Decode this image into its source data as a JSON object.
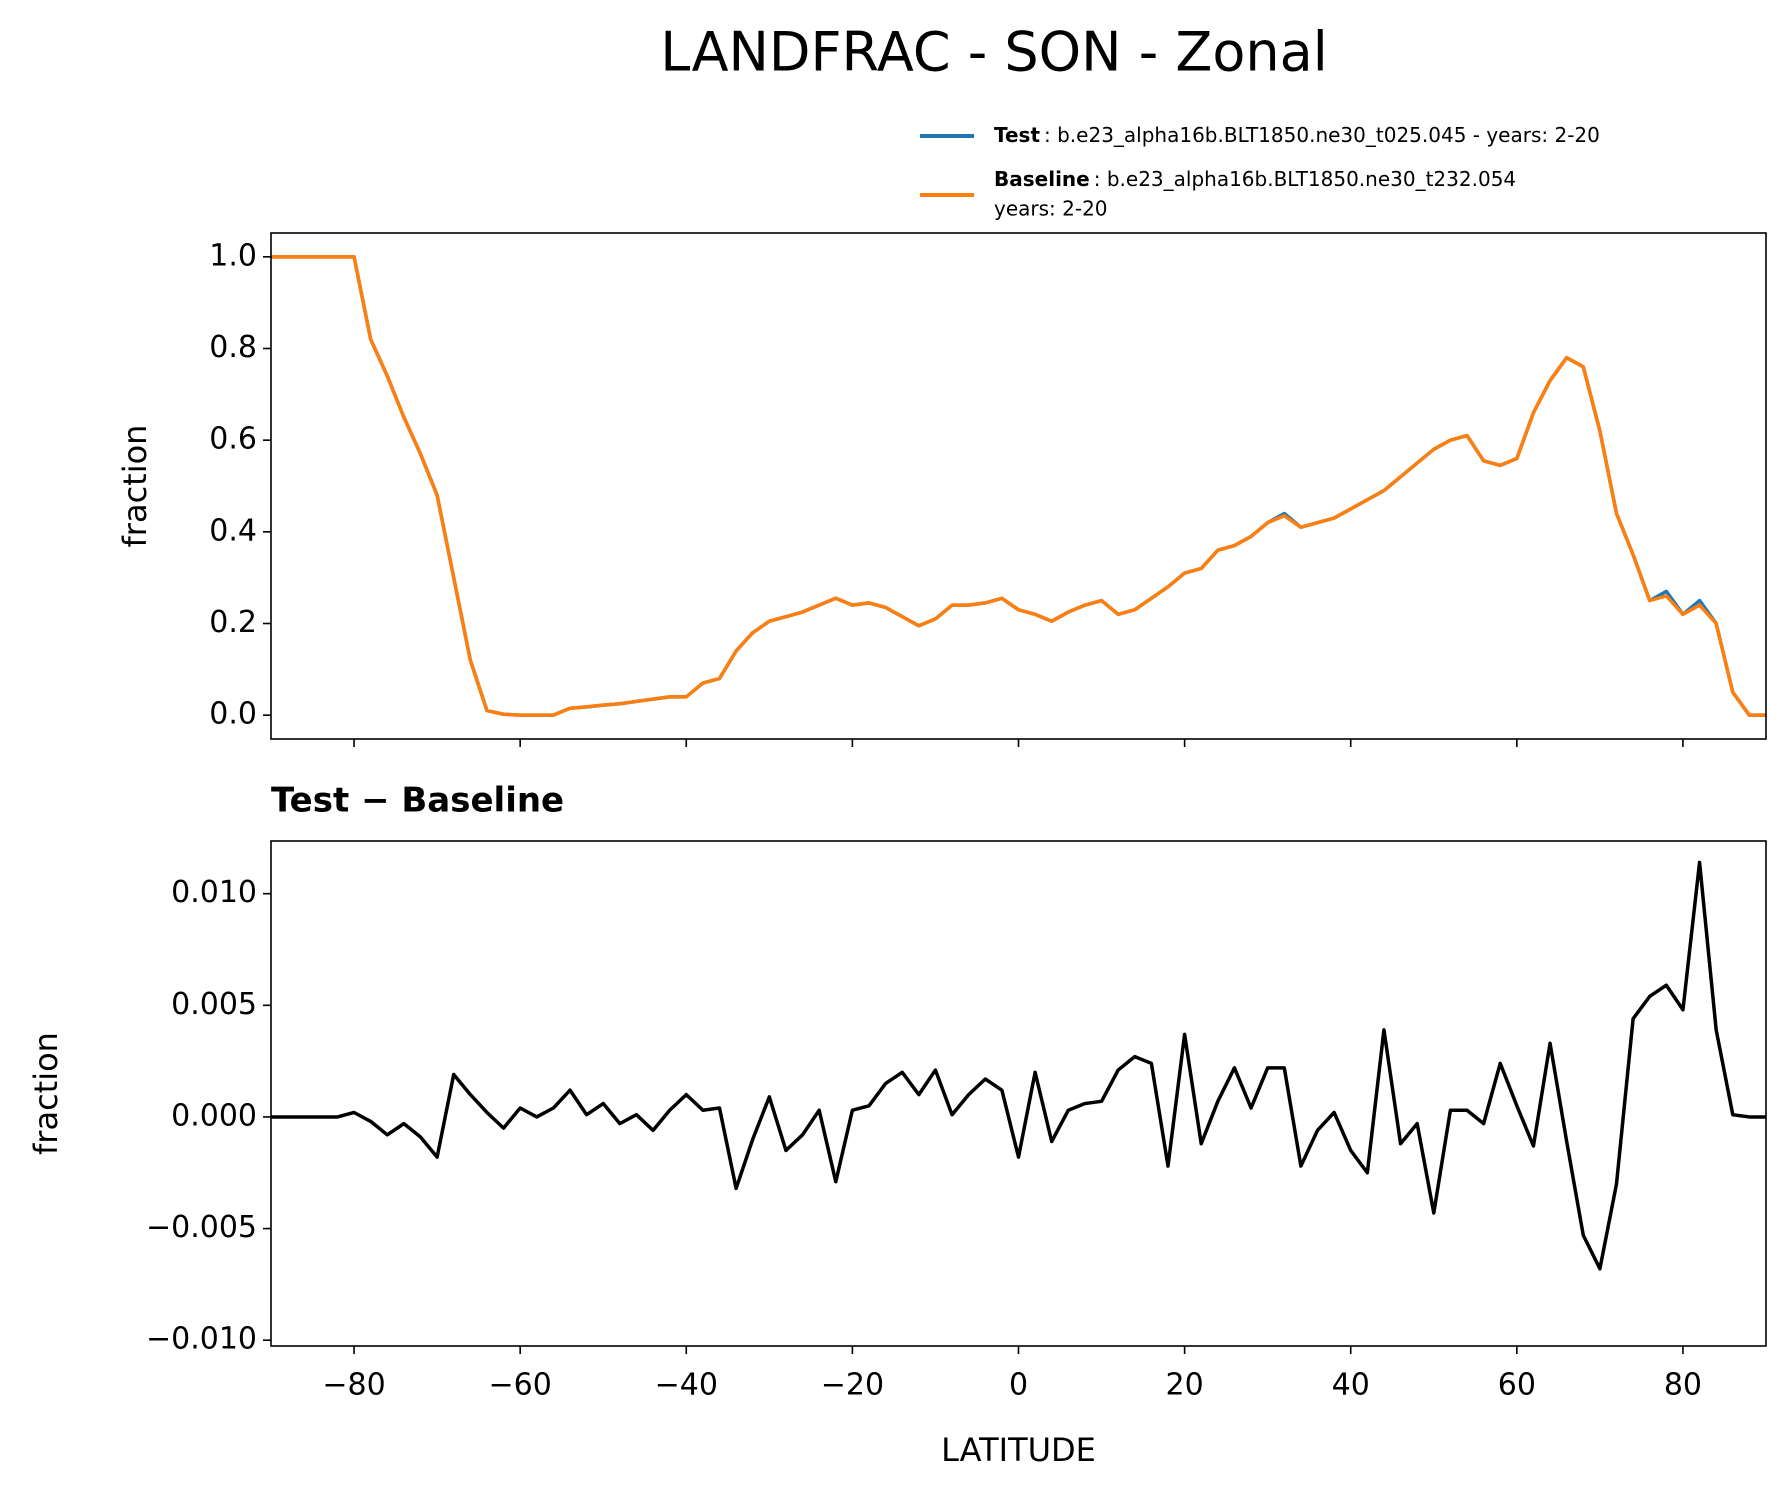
{
  "chart_data": [
    {
      "type": "line",
      "title": "LANDFRAC - SON - Zonal",
      "ylabel": "fraction",
      "x": [
        -90,
        -88,
        -86,
        -84,
        -82,
        -80,
        -78,
        -76,
        -74,
        -72,
        -70,
        -68,
        -66,
        -64,
        -62,
        -60,
        -58,
        -56,
        -54,
        -52,
        -50,
        -48,
        -46,
        -44,
        -42,
        -40,
        -38,
        -36,
        -34,
        -32,
        -30,
        -28,
        -26,
        -24,
        -22,
        -20,
        -18,
        -16,
        -14,
        -12,
        -10,
        -8,
        -6,
        -4,
        -2,
        0,
        2,
        4,
        6,
        8,
        10,
        12,
        14,
        16,
        18,
        20,
        22,
        24,
        26,
        28,
        30,
        32,
        34,
        36,
        38,
        40,
        42,
        44,
        46,
        48,
        50,
        52,
        54,
        56,
        58,
        60,
        62,
        64,
        66,
        68,
        70,
        72,
        74,
        76,
        78,
        80,
        82,
        84,
        86,
        88,
        90
      ],
      "series": [
        {
          "name": "Test",
          "case": ": b.e23_alpha16b.BLT1850.ne30_t025.045 - years: 2-20",
          "color": "#1f77b4",
          "values": [
            1,
            1,
            1,
            1,
            1,
            1,
            0.82,
            0.74,
            0.65,
            0.57,
            0.48,
            0.3,
            0.12,
            0.01,
            0.002,
            0,
            0,
            0,
            0.015,
            0.018,
            0.022,
            0.025,
            0.03,
            0.035,
            0.04,
            0.04,
            0.07,
            0.08,
            0.14,
            0.18,
            0.205,
            0.215,
            0.225,
            0.24,
            0.255,
            0.24,
            0.245,
            0.235,
            0.215,
            0.195,
            0.21,
            0.24,
            0.24,
            0.245,
            0.255,
            0.23,
            0.22,
            0.205,
            0.225,
            0.24,
            0.25,
            0.22,
            0.23,
            0.255,
            0.28,
            0.31,
            0.32,
            0.36,
            0.37,
            0.39,
            0.42,
            0.44,
            0.41,
            0.42,
            0.43,
            0.45,
            0.47,
            0.49,
            0.52,
            0.55,
            0.58,
            0.6,
            0.61,
            0.555,
            0.545,
            0.56,
            0.66,
            0.73,
            0.78,
            0.76,
            0.62,
            0.44,
            0.35,
            0.25,
            0.27,
            0.22,
            0.25,
            0.2,
            0.05,
            0,
            0
          ]
        },
        {
          "name": "Baseline",
          "case": [
            ": b.e23_alpha16b.BLT1850.ne30_t232.054",
            "years: 2-20"
          ],
          "color": "#ff7f0e",
          "values": [
            1,
            1,
            1,
            1,
            1,
            1,
            0.82,
            0.74,
            0.65,
            0.57,
            0.48,
            0.3,
            0.12,
            0.01,
            0.002,
            0,
            0,
            0,
            0.015,
            0.018,
            0.022,
            0.025,
            0.03,
            0.035,
            0.04,
            0.04,
            0.07,
            0.08,
            0.14,
            0.18,
            0.205,
            0.215,
            0.225,
            0.24,
            0.255,
            0.24,
            0.245,
            0.235,
            0.215,
            0.195,
            0.21,
            0.24,
            0.24,
            0.245,
            0.255,
            0.23,
            0.22,
            0.205,
            0.225,
            0.24,
            0.25,
            0.22,
            0.23,
            0.255,
            0.28,
            0.31,
            0.32,
            0.36,
            0.37,
            0.39,
            0.42,
            0.435,
            0.41,
            0.42,
            0.43,
            0.45,
            0.47,
            0.49,
            0.52,
            0.55,
            0.58,
            0.6,
            0.61,
            0.555,
            0.545,
            0.56,
            0.66,
            0.73,
            0.78,
            0.76,
            0.62,
            0.44,
            0.35,
            0.25,
            0.26,
            0.22,
            0.24,
            0.2,
            0.05,
            0,
            0
          ]
        }
      ],
      "xlim": [
        -90,
        90
      ],
      "xticks": [
        -80,
        -60,
        -40,
        -20,
        0,
        20,
        40,
        60,
        80
      ],
      "show_xtick_labels": false,
      "ylim": [
        -0.052,
        1.052
      ],
      "yticks": [
        {
          "value": 0,
          "label": "0.0"
        },
        {
          "value": 0.2,
          "label": "0.2"
        },
        {
          "value": 0.4,
          "label": "0.4"
        },
        {
          "value": 0.6,
          "label": "0.6"
        },
        {
          "value": 0.8,
          "label": "0.8"
        },
        {
          "value": 1,
          "label": "1.0"
        }
      ]
    },
    {
      "type": "line",
      "title": "Test − Baseline",
      "ylabel": "fraction",
      "xlabel": "LATITUDE",
      "x": [
        -90,
        -88,
        -86,
        -84,
        -82,
        -80,
        -78,
        -76,
        -74,
        -72,
        -70,
        -68,
        -66,
        -64,
        -62,
        -60,
        -58,
        -56,
        -54,
        -52,
        -50,
        -48,
        -46,
        -44,
        -42,
        -40,
        -38,
        -36,
        -34,
        -32,
        -30,
        -28,
        -26,
        -24,
        -22,
        -20,
        -18,
        -16,
        -14,
        -12,
        -10,
        -8,
        -6,
        -4,
        -2,
        0,
        2,
        4,
        6,
        8,
        10,
        12,
        14,
        16,
        18,
        20,
        22,
        24,
        26,
        28,
        30,
        32,
        34,
        36,
        38,
        40,
        42,
        44,
        46,
        48,
        50,
        52,
        54,
        56,
        58,
        60,
        62,
        64,
        66,
        68,
        70,
        72,
        74,
        76,
        78,
        80,
        82,
        84,
        86,
        88,
        90
      ],
      "series": [
        {
          "color": "#000000",
          "values": [
            0,
            0,
            0,
            0,
            0,
            0.0002,
            -0.0002,
            -0.0008,
            -0.0003,
            -0.0009,
            -0.0018,
            0.0019,
            0.001,
            0.0002,
            -0.0005,
            0.0004,
            0,
            0.0004,
            0.0012,
            0.0001,
            0.0006,
            -0.0003,
            0.0001,
            -0.0006,
            0.0003,
            0.001,
            0.0003,
            0.0004,
            -0.0032,
            -0.001,
            0.0009,
            -0.0015,
            -0.0008,
            0.0003,
            -0.0029,
            0.0003,
            0.0005,
            0.0015,
            0.002,
            0.001,
            0.0021,
            0.0001,
            0.001,
            0.0017,
            0.0012,
            -0.0018,
            0.002,
            -0.0011,
            0.0003,
            0.0006,
            0.0007,
            0.0021,
            0.0027,
            0.0024,
            -0.0022,
            0.0037,
            -0.0012,
            0.0007,
            0.0022,
            0.0004,
            0.0022,
            0.0022,
            -0.0022,
            -0.0006,
            0.0002,
            -0.0015,
            -0.0025,
            0.0039,
            -0.0012,
            -0.0003,
            -0.0043,
            0.0003,
            0.0003,
            -0.0003,
            0.0024,
            0.0005,
            -0.0013,
            0.0033,
            -0.0011,
            -0.0053,
            -0.0068,
            -0.003,
            0.0044,
            0.0054,
            0.0059,
            0.0048,
            0.0114,
            0.0039,
            0.0001,
            0,
            0
          ]
        }
      ],
      "xlim": [
        -90,
        90
      ],
      "xticks": [
        {
          "value": -80,
          "label": "−80"
        },
        {
          "value": -60,
          "label": "−60"
        },
        {
          "value": -40,
          "label": "−40"
        },
        {
          "value": -20,
          "label": "−20"
        },
        0,
        20,
        40,
        60,
        80
      ],
      "show_xtick_labels": true,
      "ylim": [
        -0.01026,
        0.01236
      ],
      "yticks": [
        {
          "value": -0.01,
          "label": "−0.010"
        },
        {
          "value": -0.005,
          "label": "−0.005"
        },
        {
          "value": 0,
          "label": "0.000"
        },
        {
          "value": 0.005,
          "label": "0.005"
        },
        {
          "value": 0.01,
          "label": "0.010"
        }
      ]
    }
  ]
}
